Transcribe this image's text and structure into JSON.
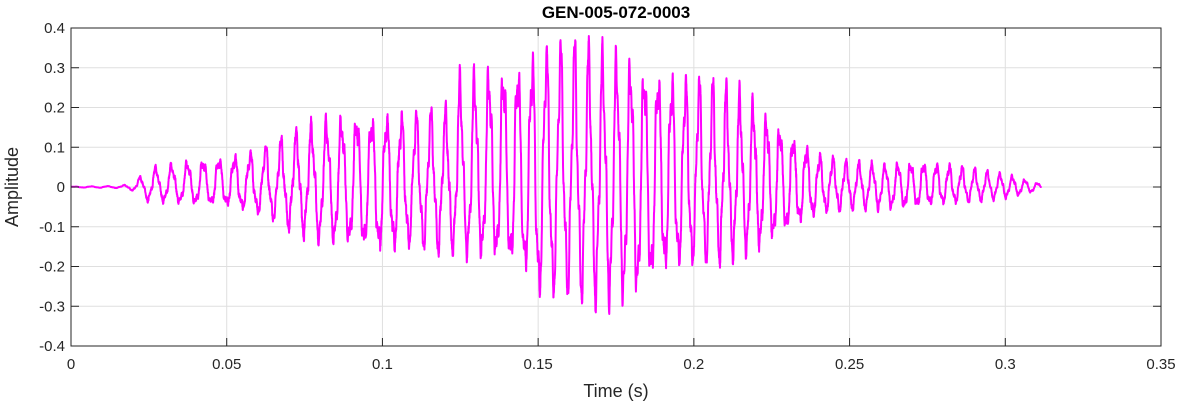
{
  "chart_data": {
    "type": "line",
    "title": "GEN-005-072-0003",
    "xlabel": "Time (s)",
    "ylabel": "Amplitude",
    "xlim": [
      0,
      0.35
    ],
    "ylim": [
      -0.4,
      0.4
    ],
    "x_ticks": [
      0,
      0.05,
      0.1,
      0.15,
      0.2,
      0.25,
      0.3,
      0.35
    ],
    "x_tick_labels": [
      "0",
      "0.05",
      "0.1",
      "0.15",
      "0.2",
      "0.25",
      "0.3",
      "0.35"
    ],
    "y_ticks": [
      -0.4,
      -0.3,
      -0.2,
      -0.1,
      0,
      0.1,
      0.2,
      0.3,
      0.4
    ],
    "y_tick_labels": [
      "-0.4",
      "-0.3",
      "-0.2",
      "-0.1",
      "0",
      "0.1",
      "0.2",
      "0.3",
      "0.4"
    ],
    "grid": true,
    "series": [
      {
        "color": "#ff00ff",
        "signal_end": 0.3115,
        "envelope": [
          [
            0.0,
            0.001,
            -0.001
          ],
          [
            0.016,
            0.003,
            -0.003
          ],
          [
            0.02,
            0.012,
            -0.01
          ],
          [
            0.025,
            0.048,
            -0.04
          ],
          [
            0.03,
            0.06,
            -0.04
          ],
          [
            0.04,
            0.075,
            -0.045
          ],
          [
            0.05,
            0.085,
            -0.05
          ],
          [
            0.06,
            0.1,
            -0.07
          ],
          [
            0.07,
            0.14,
            -0.11
          ],
          [
            0.08,
            0.18,
            -0.15
          ],
          [
            0.09,
            0.2,
            -0.16
          ],
          [
            0.1,
            0.2,
            -0.18
          ],
          [
            0.11,
            0.2,
            -0.16
          ],
          [
            0.12,
            0.21,
            -0.18
          ],
          [
            0.125,
            0.3,
            -0.18
          ],
          [
            0.135,
            0.33,
            -0.19
          ],
          [
            0.145,
            0.35,
            -0.22
          ],
          [
            0.15,
            0.38,
            -0.3
          ],
          [
            0.16,
            0.4,
            -0.29
          ],
          [
            0.17,
            0.37,
            -0.32
          ],
          [
            0.18,
            0.35,
            -0.31
          ],
          [
            0.19,
            0.32,
            -0.23
          ],
          [
            0.2,
            0.3,
            -0.21
          ],
          [
            0.21,
            0.28,
            -0.2
          ],
          [
            0.22,
            0.23,
            -0.17
          ],
          [
            0.23,
            0.15,
            -0.12
          ],
          [
            0.24,
            0.09,
            -0.07
          ],
          [
            0.25,
            0.07,
            -0.06
          ],
          [
            0.26,
            0.06,
            -0.06
          ],
          [
            0.27,
            0.07,
            -0.055
          ],
          [
            0.28,
            0.065,
            -0.045
          ],
          [
            0.29,
            0.05,
            -0.04
          ],
          [
            0.3,
            0.035,
            -0.03
          ],
          [
            0.311,
            0.01,
            -0.01
          ]
        ]
      }
    ]
  }
}
